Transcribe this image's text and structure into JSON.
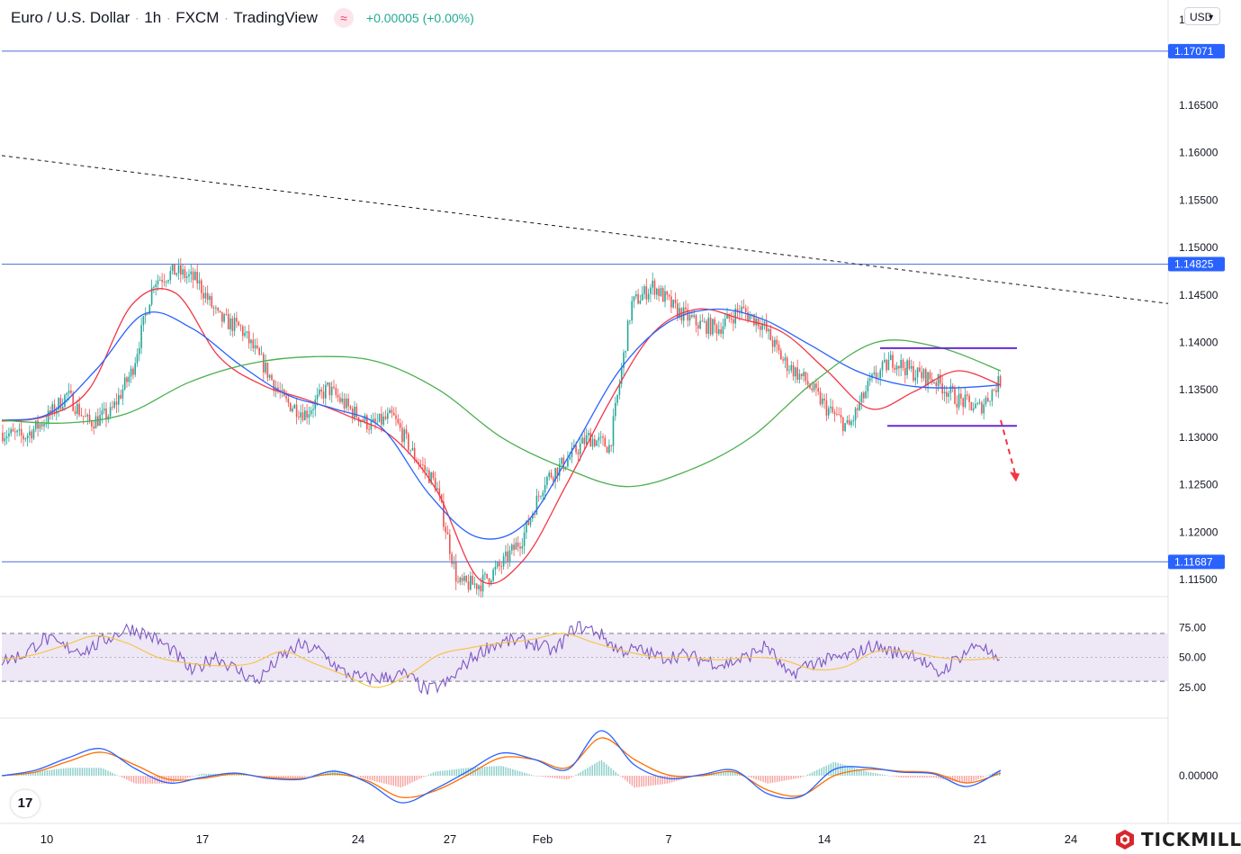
{
  "header": {
    "symbol": "Euro / U.S. Dollar",
    "interval": "1h",
    "exchange": "FXCM",
    "source": "TradingView",
    "change": "+0.00005 (+0.00%)",
    "badge_icon": "waves-icon",
    "currency": "USD",
    "top_right_tick": "1"
  },
  "brand": {
    "name": "TICKMILL",
    "tv_logo": "17"
  },
  "colors": {
    "candle_up": "#26a69a",
    "candle_down": "#ef5350",
    "sma_red": "#f23645",
    "sma_blue": "#2962ff",
    "sma_green": "#4caf50",
    "level_line": "#5b7fe0",
    "level_label_bg": "#2962ff",
    "channel": "#6a2ad8",
    "rsi_line": "#7e57c2",
    "rsi_ma": "#f9c23c",
    "rsi_band": "#ede7f6",
    "macd_line": "#2962ff",
    "signal_line": "#ff6d00",
    "arrow": "#f23645"
  },
  "chart_data": [
    {
      "type": "candlestick",
      "title": "Euro / U.S. Dollar",
      "interval": "1h",
      "x_tick_labels": [
        "10",
        "17",
        "24",
        "27",
        "Feb",
        "7",
        "14",
        "21",
        "24"
      ],
      "y_tick_labels": [
        "1.11500",
        "1.12000",
        "1.12500",
        "1.13000",
        "1.13500",
        "1.14000",
        "1.14500",
        "1.15000",
        "1.15500",
        "1.16000",
        "1.16500"
      ],
      "ylim": [
        1.1132,
        1.1761
      ],
      "grid": false,
      "horizontal_levels": [
        {
          "value": 1.17071,
          "label": "1.17071"
        },
        {
          "value": 1.14825,
          "label": "1.14825"
        },
        {
          "value": 1.11687,
          "label": "1.11687"
        }
      ],
      "trendline": {
        "style": "dashed",
        "from": [
          "start",
          1.1597
        ],
        "to": [
          "end",
          1.1441
        ]
      },
      "channel": {
        "upper": 1.1394,
        "lower": 1.1312,
        "from": "Feb 16",
        "to": "Feb 22"
      },
      "projection_arrow": {
        "from": 1.1318,
        "to": 1.1255,
        "style": "dashed",
        "direction": "down"
      },
      "price_path": [
        [
          "Jan 7",
          1.1305
        ],
        [
          "Jan 8",
          1.13
        ],
        [
          "Jan 9",
          1.1318
        ],
        [
          "Jan 10",
          1.1345
        ],
        [
          "Jan 11",
          1.1315
        ],
        [
          "Jan 12",
          1.1325
        ],
        [
          "Jan 13",
          1.137
        ],
        [
          "Jan 14",
          1.1465
        ],
        [
          "Jan 15",
          1.1475
        ],
        [
          "Jan 16",
          1.1465
        ],
        [
          "Jan 17",
          1.1425
        ],
        [
          "Jan 18",
          1.1415
        ],
        [
          "Jan 19",
          1.1378
        ],
        [
          "Jan 20",
          1.1338
        ],
        [
          "Jan 21",
          1.1325
        ],
        [
          "Jan 22",
          1.1352
        ],
        [
          "Jan 23",
          1.133
        ],
        [
          "Jan 24",
          1.1312
        ],
        [
          "Jan 25",
          1.1322
        ],
        [
          "Jan 26",
          1.128
        ],
        [
          "Jan 27",
          1.125
        ],
        [
          "Jan 28",
          1.1145
        ],
        [
          "Jan 29",
          1.1145
        ],
        [
          "Jan 30",
          1.1165
        ],
        [
          "Jan 31",
          1.1195
        ],
        [
          "Feb 1",
          1.1255
        ],
        [
          "Feb 2",
          1.1275
        ],
        [
          "Feb 3",
          1.13
        ],
        [
          "Feb 4",
          1.129
        ],
        [
          "Feb 5",
          1.144
        ],
        [
          "Feb 6",
          1.146
        ],
        [
          "Feb 7",
          1.1435
        ],
        [
          "Feb 8",
          1.142
        ],
        [
          "Feb 9",
          1.1415
        ],
        [
          "Feb 10",
          1.1435
        ],
        [
          "Feb 11",
          1.142
        ],
        [
          "Feb 12",
          1.138
        ],
        [
          "Feb 13",
          1.136
        ],
        [
          "Feb 14",
          1.133
        ],
        [
          "Feb 15",
          1.131
        ],
        [
          "Feb 16",
          1.1358
        ],
        [
          "Feb 17",
          1.1382
        ],
        [
          "Feb 18",
          1.1368
        ],
        [
          "Feb 19",
          1.136
        ],
        [
          "Feb 20",
          1.134
        ],
        [
          "Feb 21",
          1.133
        ],
        [
          "Feb 22",
          1.136
        ]
      ],
      "series": [
        {
          "name": "SMA fast",
          "color": "red",
          "values": [
            1.1317,
            1.1322,
            1.135,
            1.144,
            1.1452,
            1.1385,
            1.1355,
            1.134,
            1.1322,
            1.13,
            1.1245,
            1.115,
            1.117,
            1.125,
            1.1338,
            1.141,
            1.1435,
            1.1425,
            1.141,
            1.137,
            1.133,
            1.1348,
            1.137,
            1.1355
          ]
        },
        {
          "name": "SMA medium",
          "color": "blue",
          "values": [
            1.1318,
            1.1325,
            1.1372,
            1.143,
            1.1415,
            1.1377,
            1.1345,
            1.133,
            1.131,
            1.124,
            1.1195,
            1.1208,
            1.1285,
            1.137,
            1.142,
            1.1435,
            1.1425,
            1.1398,
            1.137,
            1.1355,
            1.1352,
            1.1355
          ]
        },
        {
          "name": "SMA slow",
          "color": "green",
          "values": [
            1.1318,
            1.1315,
            1.1325,
            1.1358,
            1.1378,
            1.1385,
            1.138,
            1.135,
            1.13,
            1.1268,
            1.1248,
            1.1265,
            1.13,
            1.1358,
            1.14,
            1.1395,
            1.137
          ]
        }
      ]
    },
    {
      "type": "line",
      "title": "",
      "y_tick_labels": [
        "25.00",
        "50.00",
        "75.00"
      ],
      "ylim": [
        0,
        100
      ],
      "bands": {
        "upper": 70,
        "middle": 50,
        "lower": 30,
        "fill": "purple"
      },
      "series": [
        {
          "name": "RSI",
          "color": "purple",
          "values": [
            47,
            52,
            66,
            58,
            56,
            66,
            75,
            68,
            56,
            37,
            52,
            40,
            30,
            48,
            60,
            55,
            38,
            32,
            33,
            36,
            22,
            29,
            48,
            60,
            64,
            62,
            55,
            76,
            72,
            56,
            56,
            50,
            52,
            48,
            44,
            50,
            60,
            34,
            45,
            48,
            52,
            60,
            54,
            53,
            35,
            50,
            62,
            42
          ]
        },
        {
          "name": "RSI MA",
          "color": "yellow",
          "values": [
            48,
            52,
            60,
            68,
            62,
            50,
            45,
            43,
            45,
            55,
            45,
            35,
            25,
            35,
            52,
            58,
            62,
            65,
            70,
            62,
            55,
            50,
            50,
            48,
            50,
            48,
            40,
            42,
            55,
            55,
            50,
            48,
            50
          ]
        }
      ]
    },
    {
      "type": "line",
      "title": "",
      "y_tick_labels": [
        "0.00000"
      ],
      "zero_line": true,
      "series": [
        {
          "name": "MACD",
          "color": "blue",
          "values": [
            0.0,
            0.0006,
            0.002,
            0.003,
            0.0008,
            -0.0008,
            -0.0002,
            0.0003,
            -0.0003,
            -0.0004,
            0.0005,
            -0.0008,
            -0.003,
            -0.0015,
            0.0005,
            0.0025,
            0.0018,
            0.0007,
            0.005,
            0.0012,
            -0.0003,
            0.0001,
            0.0006,
            -0.002,
            -0.0023,
            0.0007,
            0.0009,
            0.0004,
            0.0002,
            -0.0012,
            0.0006
          ]
        },
        {
          "name": "Signal",
          "color": "orange",
          "values": [
            0.0,
            0.0004,
            0.0016,
            0.0026,
            0.0012,
            -0.0004,
            -0.0003,
            0.0002,
            -0.0002,
            -0.0003,
            0.0002,
            -0.0006,
            -0.0024,
            -0.0017,
            0.0001,
            0.002,
            0.0018,
            0.0009,
            0.0042,
            0.0018,
            0.0001,
            0.0,
            0.0004,
            -0.0016,
            -0.0022,
            0.0,
            0.0007,
            0.0005,
            0.0003,
            -0.0008,
            0.0003
          ]
        }
      ]
    }
  ]
}
